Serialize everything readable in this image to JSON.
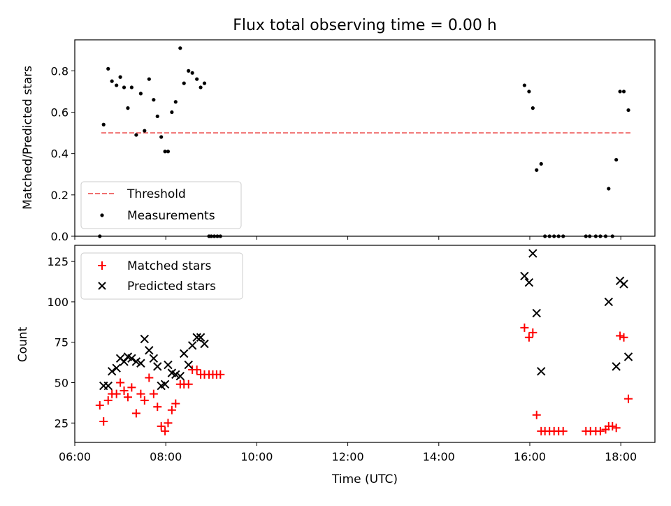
{
  "chart_data": [
    {
      "type": "scatter",
      "title": "Flux total observing time = 0.00 h",
      "ylabel": "Matched/Predicted stars",
      "xlabel": "",
      "xlim": [
        "06:00",
        "18:45"
      ],
      "ylim": [
        0,
        0.95
      ],
      "y_ticks": [
        0.0,
        0.2,
        0.4,
        0.6,
        0.8
      ],
      "y_tick_labels": [
        "0.0",
        "0.2",
        "0.4",
        "0.6",
        "0.8"
      ],
      "legend_position": "lower-left",
      "threshold": {
        "name": "Threshold",
        "value": 0.5,
        "x_start": "06:35",
        "x_end": "18:15",
        "color": "#f07070"
      },
      "series": [
        {
          "name": "Measurements",
          "color": "#000000",
          "points": [
            [
              "06:33",
              0.0
            ],
            [
              "06:38",
              0.54
            ],
            [
              "06:44",
              0.81
            ],
            [
              "06:49",
              0.75
            ],
            [
              "06:55",
              0.73
            ],
            [
              "07:00",
              0.77
            ],
            [
              "07:05",
              0.72
            ],
            [
              "07:10",
              0.62
            ],
            [
              "07:15",
              0.72
            ],
            [
              "07:21",
              0.49
            ],
            [
              "07:27",
              0.69
            ],
            [
              "07:32",
              0.51
            ],
            [
              "07:38",
              0.76
            ],
            [
              "07:44",
              0.66
            ],
            [
              "07:49",
              0.58
            ],
            [
              "07:54",
              0.48
            ],
            [
              "07:59",
              0.41
            ],
            [
              "08:03",
              0.41
            ],
            [
              "08:08",
              0.6
            ],
            [
              "08:13",
              0.65
            ],
            [
              "08:19",
              0.91
            ],
            [
              "08:24",
              0.74
            ],
            [
              "08:30",
              0.8
            ],
            [
              "08:35",
              0.79
            ],
            [
              "08:41",
              0.76
            ],
            [
              "08:46",
              0.72
            ],
            [
              "08:51",
              0.74
            ],
            [
              "08:57",
              0.0
            ],
            [
              "09:00",
              0.0
            ],
            [
              "09:04",
              0.0
            ],
            [
              "09:08",
              0.0
            ],
            [
              "09:12",
              0.0
            ],
            [
              "15:53",
              0.73
            ],
            [
              "15:59",
              0.7
            ],
            [
              "16:04",
              0.62
            ],
            [
              "16:09",
              0.32
            ],
            [
              "16:15",
              0.35
            ],
            [
              "16:20",
              0.0
            ],
            [
              "16:26",
              0.0
            ],
            [
              "16:32",
              0.0
            ],
            [
              "16:38",
              0.0
            ],
            [
              "16:44",
              0.0
            ],
            [
              "17:14",
              0.0
            ],
            [
              "17:19",
              0.0
            ],
            [
              "17:27",
              0.0
            ],
            [
              "17:33",
              0.0
            ],
            [
              "17:40",
              0.0
            ],
            [
              "17:44",
              0.23
            ],
            [
              "17:49",
              0.0
            ],
            [
              "17:54",
              0.37
            ],
            [
              "17:59",
              0.7
            ],
            [
              "18:04",
              0.7
            ],
            [
              "18:10",
              0.61
            ]
          ]
        }
      ]
    },
    {
      "type": "scatter",
      "title": "",
      "ylabel": "Count",
      "xlabel": "Time (UTC)",
      "xlim": [
        "06:00",
        "18:45"
      ],
      "ylim": [
        13,
        135
      ],
      "x_ticks": [
        "06:00",
        "08:00",
        "10:00",
        "12:00",
        "14:00",
        "16:00",
        "18:00"
      ],
      "y_ticks": [
        25,
        50,
        75,
        100,
        125
      ],
      "y_tick_labels": [
        "25",
        "50",
        "75",
        "100",
        "125"
      ],
      "legend_position": "upper-left",
      "series": [
        {
          "name": "Matched stars",
          "marker": "plus",
          "color": "#ff0000",
          "points": [
            [
              "06:33",
              36
            ],
            [
              "06:38",
              26
            ],
            [
              "06:44",
              39
            ],
            [
              "06:49",
              43
            ],
            [
              "06:55",
              43
            ],
            [
              "07:00",
              50
            ],
            [
              "07:05",
              45
            ],
            [
              "07:10",
              41
            ],
            [
              "07:15",
              47
            ],
            [
              "07:21",
              31
            ],
            [
              "07:27",
              43
            ],
            [
              "07:32",
              39
            ],
            [
              "07:38",
              53
            ],
            [
              "07:44",
              43
            ],
            [
              "07:49",
              35
            ],
            [
              "07:54",
              23
            ],
            [
              "07:59",
              20
            ],
            [
              "08:03",
              25
            ],
            [
              "08:08",
              33
            ],
            [
              "08:13",
              37
            ],
            [
              "08:19",
              49
            ],
            [
              "08:24",
              49
            ],
            [
              "08:30",
              49
            ],
            [
              "08:35",
              58
            ],
            [
              "08:41",
              58
            ],
            [
              "08:46",
              55
            ],
            [
              "08:51",
              55
            ],
            [
              "08:57",
              55
            ],
            [
              "09:02",
              55
            ],
            [
              "09:07",
              55
            ],
            [
              "09:12",
              55
            ],
            [
              "15:53",
              84
            ],
            [
              "15:59",
              78
            ],
            [
              "16:04",
              81
            ],
            [
              "16:09",
              30
            ],
            [
              "16:15",
              20
            ],
            [
              "16:20",
              20
            ],
            [
              "16:26",
              20
            ],
            [
              "16:32",
              20
            ],
            [
              "16:38",
              20
            ],
            [
              "16:44",
              20
            ],
            [
              "17:14",
              20
            ],
            [
              "17:20",
              20
            ],
            [
              "17:27",
              20
            ],
            [
              "17:33",
              20
            ],
            [
              "17:40",
              21
            ],
            [
              "17:44",
              23
            ],
            [
              "17:49",
              23
            ],
            [
              "17:54",
              22
            ],
            [
              "17:59",
              79
            ],
            [
              "18:04",
              78
            ],
            [
              "18:10",
              40
            ]
          ]
        },
        {
          "name": "Predicted stars",
          "marker": "x",
          "color": "#000000",
          "points": [
            [
              "06:38",
              48
            ],
            [
              "06:44",
              48
            ],
            [
              "06:49",
              57
            ],
            [
              "06:55",
              59
            ],
            [
              "07:00",
              65
            ],
            [
              "07:05",
              63
            ],
            [
              "07:10",
              66
            ],
            [
              "07:15",
              65
            ],
            [
              "07:21",
              63
            ],
            [
              "07:27",
              62
            ],
            [
              "07:32",
              77
            ],
            [
              "07:38",
              70
            ],
            [
              "07:44",
              65
            ],
            [
              "07:49",
              60
            ],
            [
              "07:54",
              48
            ],
            [
              "07:59",
              49
            ],
            [
              "08:03",
              61
            ],
            [
              "08:08",
              56
            ],
            [
              "08:13",
              55
            ],
            [
              "08:19",
              54
            ],
            [
              "08:24",
              68
            ],
            [
              "08:30",
              61
            ],
            [
              "08:35",
              73
            ],
            [
              "08:41",
              78
            ],
            [
              "08:46",
              78
            ],
            [
              "08:51",
              74
            ],
            [
              "15:53",
              116
            ],
            [
              "15:59",
              112
            ],
            [
              "16:04",
              130
            ],
            [
              "16:09",
              93
            ],
            [
              "16:15",
              57
            ],
            [
              "17:44",
              100
            ],
            [
              "17:54",
              60
            ],
            [
              "17:59",
              113
            ],
            [
              "18:04",
              111
            ],
            [
              "18:10",
              66
            ]
          ]
        }
      ]
    }
  ]
}
